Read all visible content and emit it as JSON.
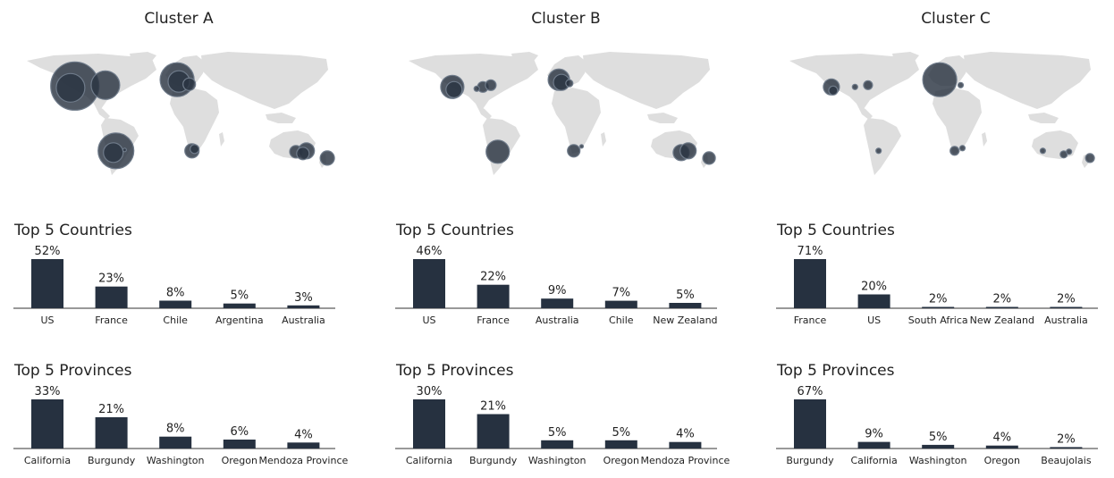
{
  "colors": {
    "bar": "#263140",
    "land": "#dedede",
    "bubble": "#2b3442"
  },
  "chart_data": [
    {
      "type": "bar",
      "title": "Cluster A",
      "map_bubbles": [
        {
          "lon": -115,
          "lat": 39,
          "r": 27
        },
        {
          "lon": -120,
          "lat": 37,
          "r": 16
        },
        {
          "lon": -80,
          "lat": 40,
          "r": 16
        },
        {
          "lon": 2,
          "lat": 46,
          "r": 19
        },
        {
          "lon": 4,
          "lat": 44,
          "r": 12
        },
        {
          "lon": 16,
          "lat": 41,
          "r": 7
        },
        {
          "lon": -68,
          "lat": -33,
          "r": 20
        },
        {
          "lon": -71,
          "lat": -35,
          "r": 11
        },
        {
          "lon": -58,
          "lat": -32,
          "r": 2
        },
        {
          "lon": 19,
          "lat": -33,
          "r": 8
        },
        {
          "lon": 22,
          "lat": -31,
          "r": 5
        },
        {
          "lon": 138,
          "lat": -34,
          "r": 7
        },
        {
          "lon": 150,
          "lat": -33,
          "r": 9
        },
        {
          "lon": 146,
          "lat": -36,
          "r": 7
        },
        {
          "lon": 174,
          "lat": -41,
          "r": 8
        }
      ],
      "panels": [
        {
          "title": "Top 5 Countries",
          "categories": [
            "US",
            "France",
            "Chile",
            "Argentina",
            "Australia"
          ],
          "values": [
            52,
            23,
            8,
            5,
            3
          ],
          "labels": [
            "52%",
            "23%",
            "8%",
            "5%",
            "3%"
          ]
        },
        {
          "title": "Top 5 Provinces",
          "categories": [
            "California",
            "Burgundy",
            "Washington",
            "Oregon",
            "Mendoza Province"
          ],
          "values": [
            33,
            21,
            8,
            6,
            4
          ],
          "labels": [
            "33%",
            "21%",
            "8%",
            "6%",
            "4%"
          ]
        }
      ]
    },
    {
      "type": "bar",
      "title": "Cluster B",
      "map_bubbles": [
        {
          "lon": -120,
          "lat": 38,
          "r": 13
        },
        {
          "lon": -118,
          "lat": 35,
          "r": 9
        },
        {
          "lon": -85,
          "lat": 38,
          "r": 6
        },
        {
          "lon": -76,
          "lat": 40,
          "r": 6
        },
        {
          "lon": -92,
          "lat": 36,
          "r": 3
        },
        {
          "lon": 2,
          "lat": 46,
          "r": 12
        },
        {
          "lon": 5,
          "lat": 43,
          "r": 9
        },
        {
          "lon": 14,
          "lat": 42,
          "r": 4
        },
        {
          "lon": -68,
          "lat": -34,
          "r": 13
        },
        {
          "lon": 19,
          "lat": -33,
          "r": 7
        },
        {
          "lon": 28,
          "lat": -28,
          "r": 2
        },
        {
          "lon": 142,
          "lat": -35,
          "r": 9
        },
        {
          "lon": 150,
          "lat": -33,
          "r": 9
        },
        {
          "lon": 174,
          "lat": -41,
          "r": 7
        }
      ],
      "panels": [
        {
          "title": "Top 5 Countries",
          "categories": [
            "US",
            "France",
            "Australia",
            "Chile",
            "New Zealand"
          ],
          "values": [
            46,
            22,
            9,
            7,
            5
          ],
          "labels": [
            "46%",
            "22%",
            "9%",
            "7%",
            "5%"
          ]
        },
        {
          "title": "Top 5 Provinces",
          "categories": [
            "California",
            "Burgundy",
            "Washington",
            "Oregon",
            "Mendoza Province"
          ],
          "values": [
            30,
            21,
            5,
            5,
            4
          ],
          "labels": [
            "30%",
            "21%",
            "5%",
            "5%",
            "4%"
          ]
        }
      ]
    },
    {
      "type": "bar",
      "title": "Cluster C",
      "map_bubbles": [
        {
          "lon": -122,
          "lat": 38,
          "r": 9
        },
        {
          "lon": -120,
          "lat": 34,
          "r": 5
        },
        {
          "lon": -80,
          "lat": 40,
          "r": 5
        },
        {
          "lon": -95,
          "lat": 38,
          "r": 3
        },
        {
          "lon": 2,
          "lat": 46,
          "r": 19
        },
        {
          "lon": 26,
          "lat": 40,
          "r": 3
        },
        {
          "lon": -68,
          "lat": -33,
          "r": 3
        },
        {
          "lon": 19,
          "lat": -33,
          "r": 5
        },
        {
          "lon": 28,
          "lat": -30,
          "r": 3
        },
        {
          "lon": 120,
          "lat": -33,
          "r": 3
        },
        {
          "lon": 144,
          "lat": -37,
          "r": 4
        },
        {
          "lon": 150,
          "lat": -34,
          "r": 3
        },
        {
          "lon": 174,
          "lat": -41,
          "r": 5
        }
      ],
      "panels": [
        {
          "title": "Top 5 Countries",
          "categories": [
            "France",
            "US",
            "South Africa",
            "New Zealand",
            "Australia"
          ],
          "values": [
            71,
            20,
            2,
            2,
            2
          ],
          "labels": [
            "71%",
            "20%",
            "2%",
            "2%",
            "2%"
          ]
        },
        {
          "title": "Top 5 Provinces",
          "categories": [
            "Burgundy",
            "California",
            "Washington",
            "Oregon",
            "Beaujolais"
          ],
          "values": [
            67,
            9,
            5,
            4,
            2
          ],
          "labels": [
            "67%",
            "9%",
            "5%",
            "4%",
            "2%"
          ]
        }
      ]
    }
  ]
}
